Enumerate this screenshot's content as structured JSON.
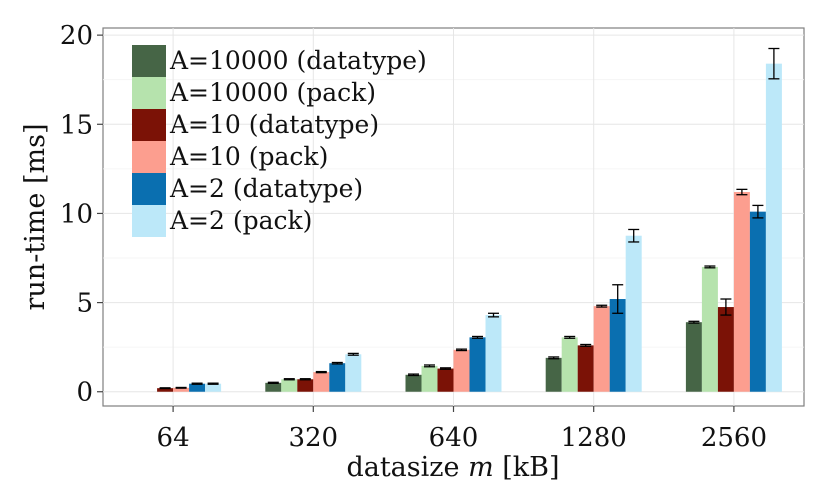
{
  "chart_data": {
    "type": "bar",
    "title": "",
    "xlabel_prefix": "datasize ",
    "xlabel_var": "m",
    "xlabel_suffix": " [kB]",
    "ylabel": "run-time [ms]",
    "ylim": [
      -0.8,
      20.4
    ],
    "yticks": [
      0,
      5,
      10,
      15,
      20
    ],
    "categories": [
      "64",
      "320",
      "640",
      "1280",
      "2560"
    ],
    "legend_position": "top-left",
    "grid": true,
    "series": [
      {
        "name": "A=10000 (datatype)",
        "color": "#466546",
        "values": [
          null,
          0.5,
          0.95,
          1.9,
          3.9
        ],
        "errors": [
          null,
          0.03,
          0.04,
          0.05,
          0.05
        ]
      },
      {
        "name": "A=10000 (pack)",
        "color": "#b6e3ad",
        "values": [
          null,
          0.7,
          1.45,
          3.05,
          7.0
        ],
        "errors": [
          null,
          0.03,
          0.05,
          0.05,
          0.05
        ]
      },
      {
        "name": "A=10 (datatype)",
        "color": "#7b1206",
        "values": [
          0.2,
          0.7,
          1.3,
          2.6,
          4.75
        ],
        "errors": [
          0.02,
          0.03,
          0.04,
          0.05,
          0.45
        ]
      },
      {
        "name": "A=10 (pack)",
        "color": "#fc9e8f",
        "values": [
          0.22,
          1.1,
          2.35,
          4.8,
          11.2
        ],
        "errors": [
          0.02,
          0.03,
          0.04,
          0.05,
          0.15
        ]
      },
      {
        "name": "A=2 (datatype)",
        "color": "#0a6fb0",
        "values": [
          0.45,
          1.6,
          3.05,
          5.2,
          10.1
        ],
        "errors": [
          0.03,
          0.04,
          0.05,
          0.8,
          0.35
        ]
      },
      {
        "name": "A=2 (pack)",
        "color": "#bce8f9",
        "values": [
          0.45,
          2.1,
          4.3,
          8.75,
          18.4
        ],
        "errors": [
          0.03,
          0.05,
          0.1,
          0.35,
          0.85
        ]
      }
    ]
  }
}
